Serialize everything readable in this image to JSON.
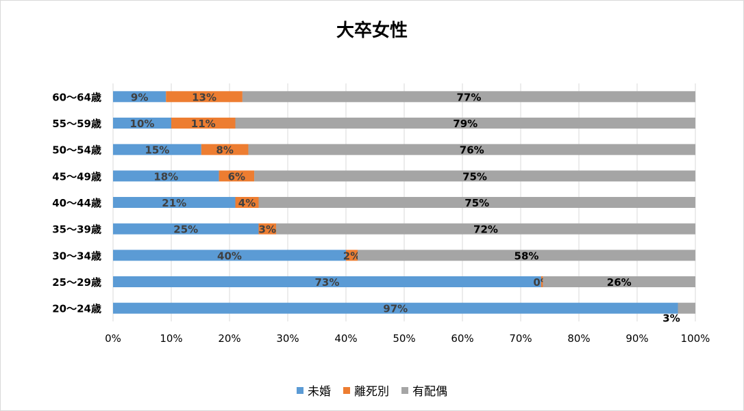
{
  "chart_data": {
    "type": "bar",
    "orientation": "horizontal",
    "stacked": true,
    "title": "大卒女性",
    "categories": [
      "60～64歳",
      "55～59歳",
      "50～54歳",
      "45～49歳",
      "40～44歳",
      "35～39歳",
      "30～34歳",
      "25～29歳",
      "20～24歳"
    ],
    "series": [
      {
        "name": "未婚",
        "color": "#5b9bd5",
        "values": [
          9,
          10,
          15,
          18,
          21,
          25,
          40,
          73,
          97
        ],
        "value_labels": [
          "9%",
          "10%",
          "15%",
          "18%",
          "21%",
          "25%",
          "40%",
          "73%",
          "97%"
        ]
      },
      {
        "name": "離死別",
        "color": "#ed7d31",
        "values": [
          13,
          11,
          8,
          6,
          4,
          3,
          2,
          0.3,
          0
        ],
        "value_labels": [
          "13%",
          "11%",
          "8%",
          "6%",
          "4%",
          "3%",
          "2%",
          "0%",
          ""
        ]
      },
      {
        "name": "有配偶",
        "color": "#a5a5a5",
        "values": [
          77,
          79,
          76,
          75,
          75,
          72,
          58,
          26,
          3
        ],
        "value_labels": [
          "77%",
          "79%",
          "76%",
          "75%",
          "75%",
          "72%",
          "58%",
          "26%",
          "3%"
        ]
      }
    ],
    "xlim": [
      0,
      100
    ],
    "x_ticks": [
      "0%",
      "10%",
      "20%",
      "30%",
      "40%",
      "50%",
      "60%",
      "70%",
      "80%",
      "90%",
      "100%"
    ],
    "grid": true,
    "legend": "bottom"
  }
}
